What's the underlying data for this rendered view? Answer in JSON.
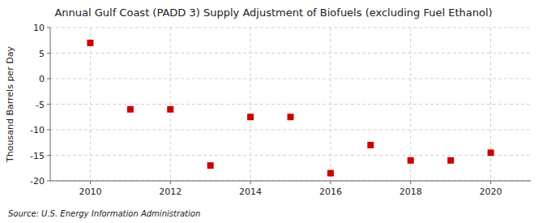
{
  "chart_data": {
    "type": "scatter",
    "title": "Annual Gulf Coast (PADD 3) Supply Adjustment of Biofuels (excluding Fuel Ethanol)",
    "ylabel": "Thousand Barrels per Day",
    "source": "Source: U.S. Energy Information Administration",
    "x": [
      2010,
      2011,
      2012,
      2013,
      2014,
      2015,
      2016,
      2017,
      2018,
      2019,
      2020
    ],
    "values": [
      7.0,
      -6.0,
      -6.0,
      -17.0,
      -7.5,
      -7.5,
      -18.5,
      -13.0,
      -16.0,
      -16.0,
      -14.5
    ],
    "xlim": [
      2009.0,
      2021.0
    ],
    "ylim": [
      -20,
      10
    ],
    "xticks": [
      2010,
      2012,
      2014,
      2016,
      2018,
      2020
    ],
    "yticks": [
      -20,
      -15,
      -10,
      -5,
      0,
      5,
      10
    ],
    "color": "#CC0000",
    "marker": "square",
    "grid": true
  }
}
